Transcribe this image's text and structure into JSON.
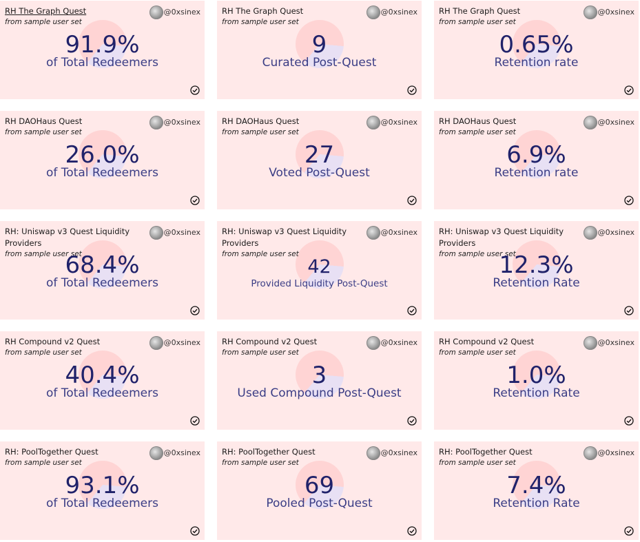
{
  "handle": "@0xsinex",
  "subtitle": "from sample user set",
  "cards": [
    {
      "title": "RH The Graph Quest",
      "value": "91.9%",
      "label": "of Total Redeemers",
      "underlined": true
    },
    {
      "title": "RH The Graph Quest",
      "value": "9",
      "label": "Curated Post-Quest"
    },
    {
      "title": "RH The Graph Quest",
      "value": "0.65%",
      "label": "Retention rate"
    },
    {
      "title": "RH DAOHaus Quest",
      "value": "26.0%",
      "label": "of Total Redeemers"
    },
    {
      "title": "RH DAOHaus Quest",
      "value": "27",
      "label": "Voted Post-Quest"
    },
    {
      "title": "RH DAOHaus Quest",
      "value": "6.9%",
      "label": "Retention rate"
    },
    {
      "title": "RH: Uniswap v3 Quest Liquidity Providers",
      "value": "68.4%",
      "label": "of Total Redeemers"
    },
    {
      "title": "RH: Uniswap v3 Quest Liquidity Providers",
      "value": "42",
      "label": "Provided Liquidity Post-Quest",
      "small": true
    },
    {
      "title": "RH: Uniswap v3 Quest Liquidity Providers",
      "value": "12.3%",
      "label": "Retention Rate"
    },
    {
      "title": "RH Compound v2 Quest",
      "value": "40.4%",
      "label": "of Total Redeemers"
    },
    {
      "title": "RH Compound v2 Quest",
      "value": "3",
      "label": "Used Compound Post-Quest"
    },
    {
      "title": "RH Compound v2 Quest",
      "value": "1.0%",
      "label": "Retention Rate"
    },
    {
      "title": "RH: PoolTogether Quest",
      "value": "93.1%",
      "label": "of Total Redeemers"
    },
    {
      "title": "RH: PoolTogether Quest",
      "value": "69",
      "label": "Pooled Post-Quest"
    },
    {
      "title": "RH: PoolTogether Quest",
      "value": "7.4%",
      "label": "Retention Rate"
    }
  ]
}
